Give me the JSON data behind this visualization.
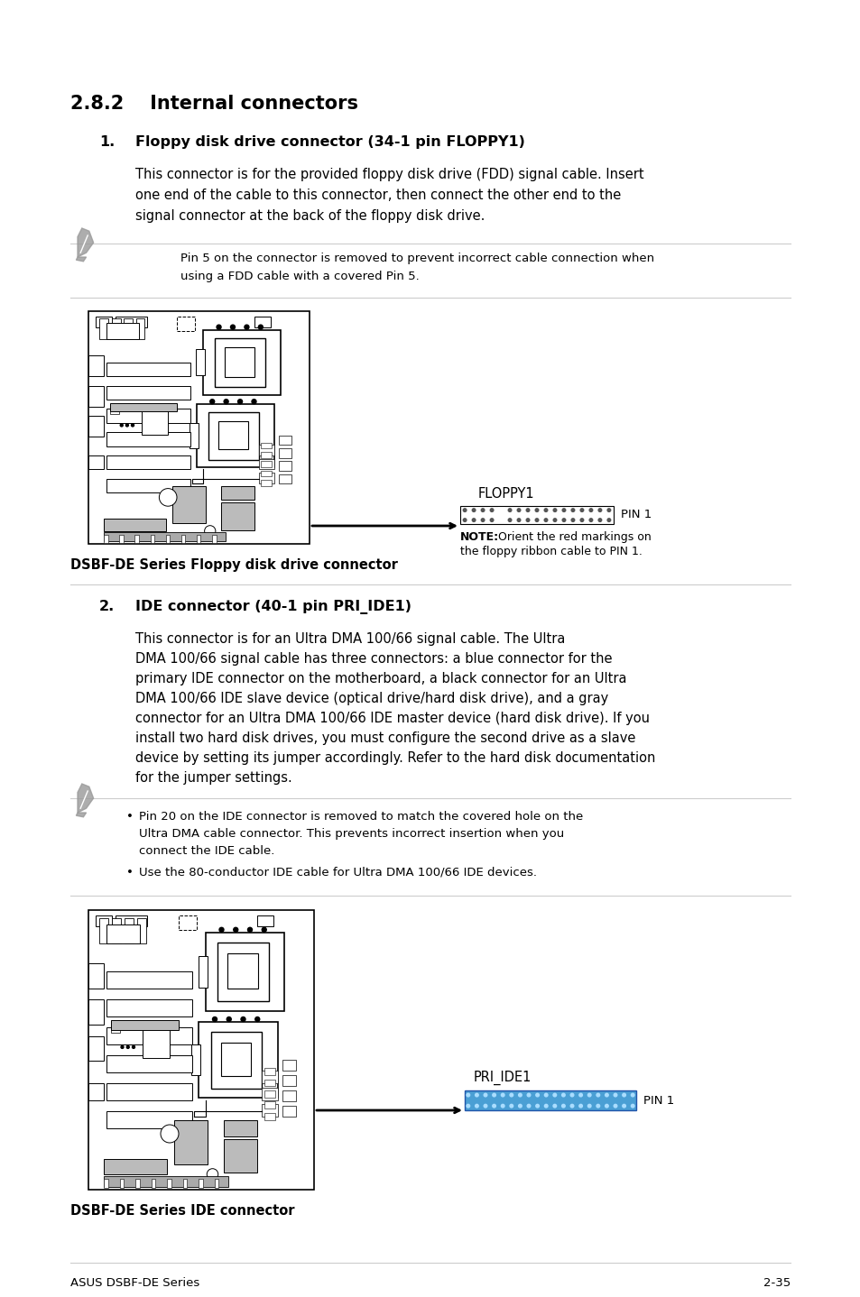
{
  "page_bg": "#ffffff",
  "divider_color": "#cccccc",
  "section_title": "2.8.2    Internal connectors",
  "section_title_fontsize": 15,
  "footer_left": "ASUS DSBF-DE Series",
  "footer_right": "2-35",
  "item1_num": "1.",
  "item1_title": "Floppy disk drive connector (34-1 pin FLOPPY1)",
  "item1_body_line1": "This connector is for the provided floppy disk drive (FDD) signal cable. Insert",
  "item1_body_line2": "one end of the cable to this connector, then connect the other end to the",
  "item1_body_line3": "signal connector at the back of the floppy disk drive.",
  "note1_line1": "Pin 5 on the connector is removed to prevent incorrect cable connection when",
  "note1_line2": "using a FDD cable with a covered Pin 5.",
  "floppy_label": "FLOPPY1",
  "floppy_pin1_label": "PIN 1",
  "floppy_note_bold": "NOTE:",
  "floppy_note_rest": " Orient the red markings on",
  "floppy_note_line2": "the floppy ribbon cable to PIN 1.",
  "floppy_caption": "DSBF-DE Series Floppy disk drive connector",
  "item2_num": "2.",
  "item2_title": "IDE connector (40-1 pin PRI_IDE1)",
  "item2_body_line1": "This connector is for an Ultra DMA 100/66 signal cable. The Ultra",
  "item2_body_line2": "DMA 100/66 signal cable has three connectors: a blue connector for the",
  "item2_body_line3": "primary IDE connector on the motherboard, a black connector for an Ultra",
  "item2_body_line4": "DMA 100/66 IDE slave device (optical drive/hard disk drive), and a gray",
  "item2_body_line5": "connector for an Ultra DMA 100/66 IDE master device (hard disk drive). If you",
  "item2_body_line6": "install two hard disk drives, you must configure the second drive as a slave",
  "item2_body_line7": "device by setting its jumper accordingly. Refer to the hard disk documentation",
  "item2_body_line8": "for the jumper settings.",
  "note2_bullet1_line1": "Pin 20 on the IDE connector is removed to match the covered hole on the",
  "note2_bullet1_line2": "Ultra DMA cable connector. This prevents incorrect insertion when you",
  "note2_bullet1_line3": "connect the IDE cable.",
  "note2_bullet2": "Use the 80-conductor IDE cable for Ultra DMA 100/66 IDE devices.",
  "pri_ide_label": "PRI_IDE1",
  "pri_ide_pin1_label": "PIN 1",
  "ide_caption": "DSBF-DE Series IDE connector",
  "ide_connector_fill": "#4a9fd4",
  "body_fontsize": 10.5,
  "note_fontsize": 9.5,
  "caption_fontsize": 10.5,
  "title_fontsize": 11.5,
  "connector_label_fontsize": 10.5,
  "pin_fontsize": 9.5
}
